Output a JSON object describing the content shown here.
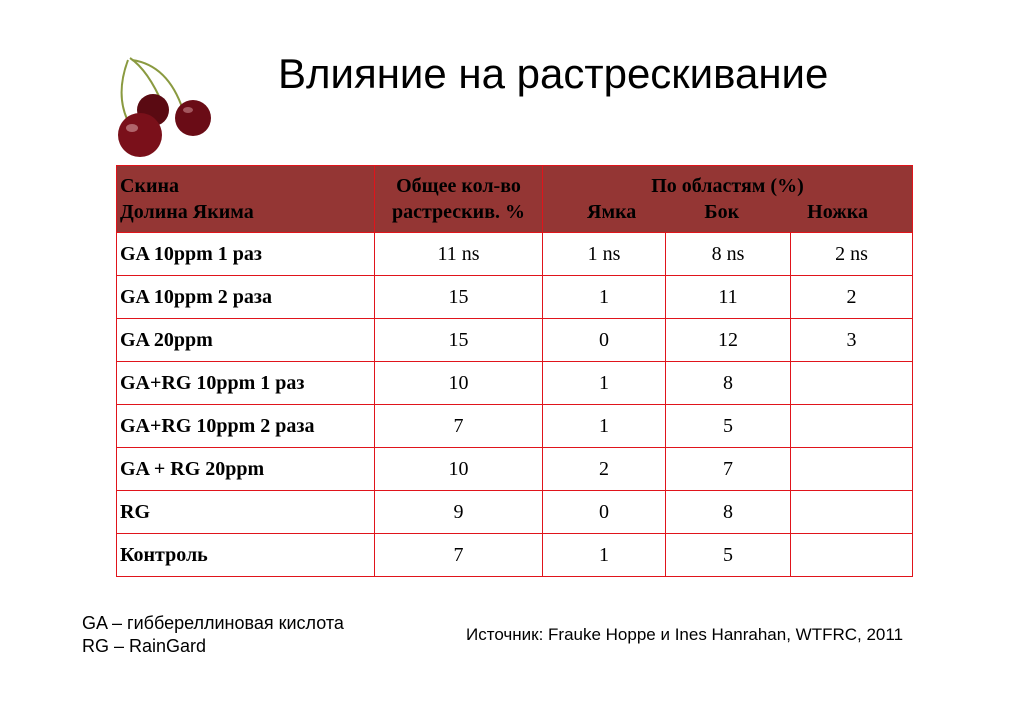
{
  "title": "Влияние на растрескивание",
  "table": {
    "header": {
      "col1": [
        "Скина",
        "Долина Якима"
      ],
      "col2": [
        "Общее кол-во",
        "растрескив. %"
      ],
      "group": "По областям (%)",
      "sub": [
        "Ямка",
        "Бок",
        "Ножка"
      ]
    },
    "rows": [
      [
        "GA 10ppm 1 раз",
        "11 ns",
        "1 ns",
        "8 ns",
        "2 ns"
      ],
      [
        "GA 10ppm 2 раза",
        "15",
        "1",
        "11",
        "2"
      ],
      [
        "GA 20ppm",
        "15",
        "0",
        "12",
        "3"
      ],
      [
        "GA+RG 10ppm 1 раз",
        "10",
        "1",
        "8",
        ""
      ],
      [
        "GA+RG 10ppm 2 раза",
        "7",
        "1",
        "5",
        ""
      ],
      [
        "GA + RG 20ppm",
        "10",
        "2",
        "7",
        ""
      ],
      [
        "RG",
        "9",
        "0",
        "8",
        ""
      ],
      [
        "Контроль",
        "7",
        "1",
        "5",
        ""
      ]
    ]
  },
  "legend": [
    "GA – гиббереллиновая кислота",
    "RG – RainGard"
  ],
  "source": "Источник: Frauke Hoppe и Ines Hanrahan, WTFRC, 2011",
  "colors": {
    "header_bg": "#943634",
    "border": "#e0141b"
  }
}
